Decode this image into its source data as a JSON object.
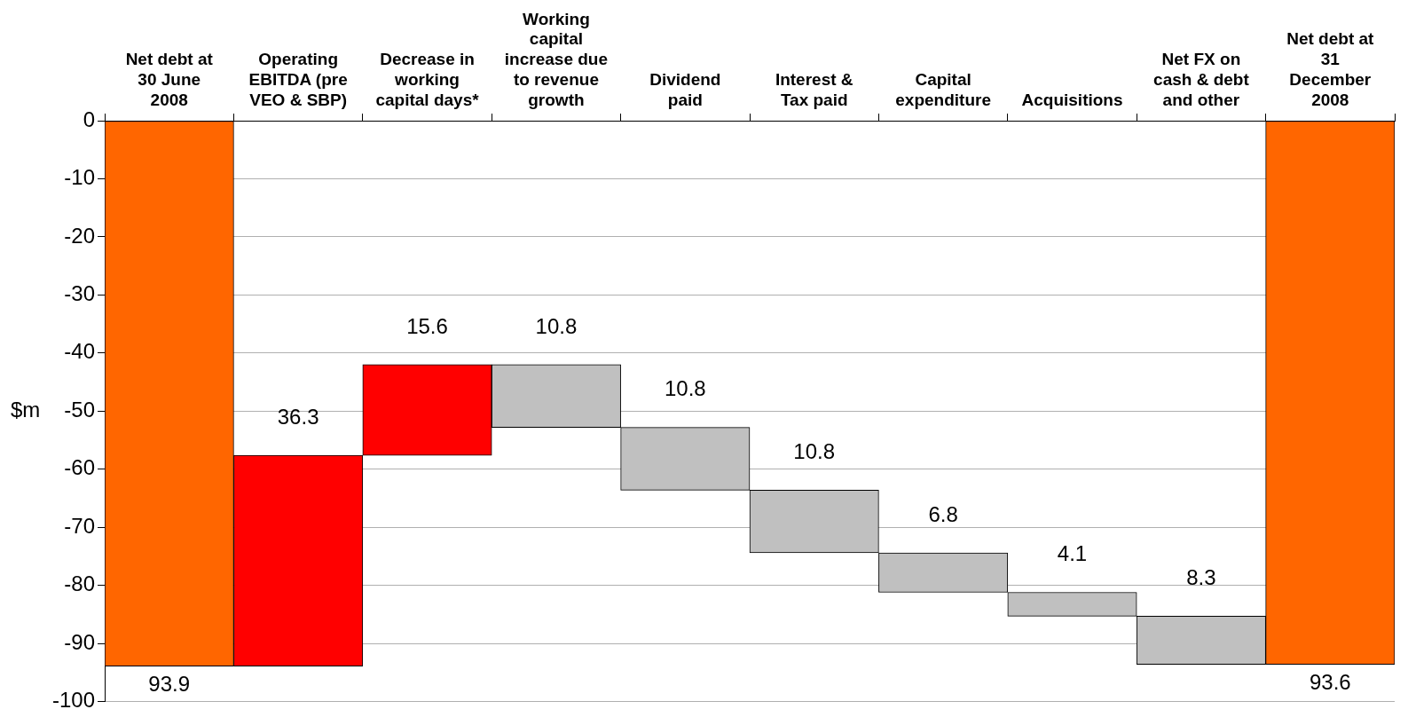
{
  "chart_data": {
    "type": "bar",
    "ylabel": "$m",
    "categories": [
      "Net debt at 30 June 2008",
      "Operating EBITDA (pre VEO & SBP)",
      "Decrease in working capital days*",
      "Working capital increase due to revenue growth",
      "Dividend paid",
      "Interest & Tax paid",
      "Capital expenditure",
      "Acquisitions",
      "Net FX on cash & debt and other",
      "Net debt at 31 December 2008"
    ],
    "base": [
      0,
      -93.9,
      -57.6,
      -42.0,
      -52.8,
      -63.6,
      -74.4,
      -81.2,
      -85.3,
      0
    ],
    "values": [
      -93.9,
      36.3,
      15.6,
      -10.8,
      -10.8,
      -10.8,
      -6.8,
      -4.1,
      -8.3,
      -93.6
    ],
    "colors": [
      "#ff6600",
      "#ff0000",
      "#ff0000",
      "#c0c0c0",
      "#c0c0c0",
      "#c0c0c0",
      "#c0c0c0",
      "#c0c0c0",
      "#c0c0c0",
      "#ff6600"
    ],
    "value_labels": [
      "93.9",
      "36.3",
      "15.6",
      "10.8",
      "10.8",
      "10.8",
      "6.8",
      "4.1",
      "8.3",
      "93.6"
    ],
    "ylim": [
      -100,
      0
    ],
    "yticks": [
      0,
      -10,
      -20,
      -30,
      -40,
      -50,
      -60,
      -70,
      -80,
      -90,
      -100
    ],
    "grid": "y",
    "legend": false
  }
}
